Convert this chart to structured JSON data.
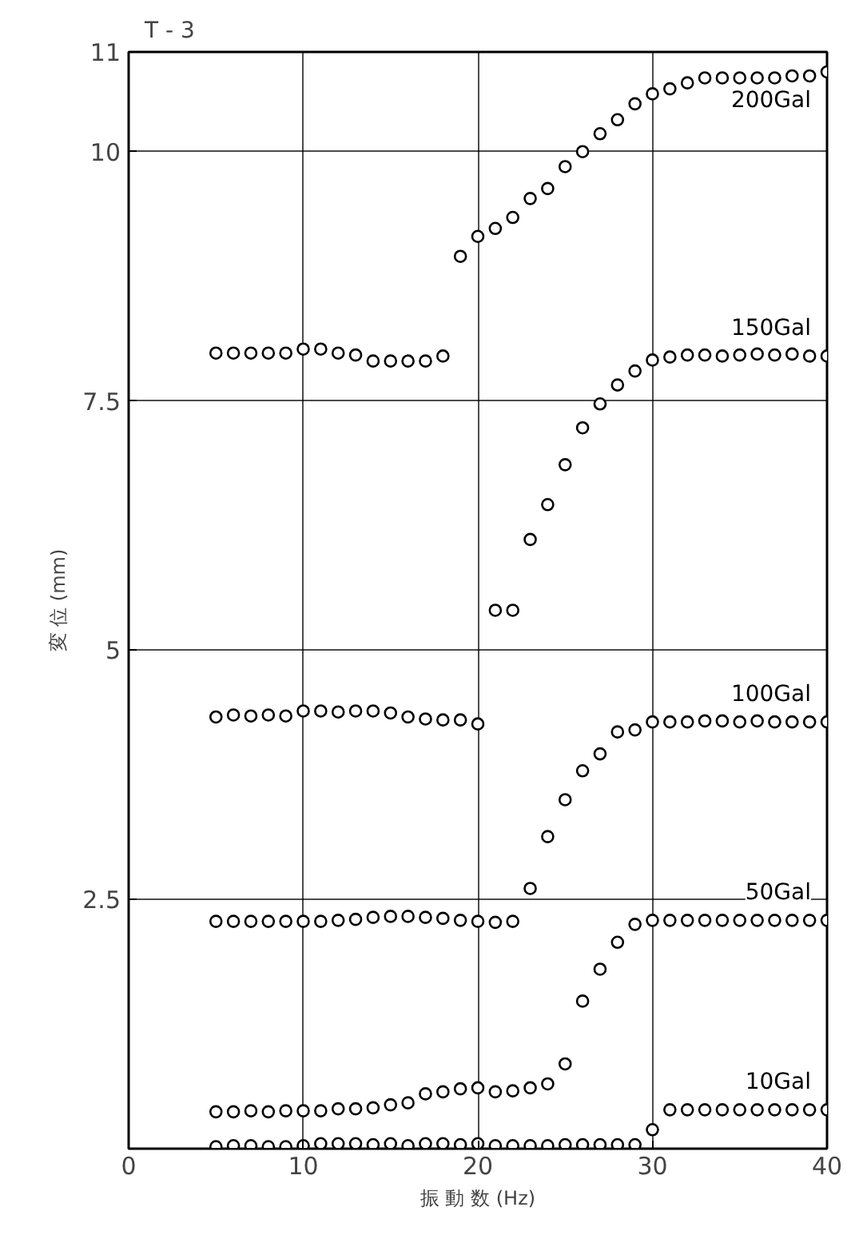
{
  "chart_data": {
    "type": "scatter",
    "title": "T - 3",
    "xlabel": "振 動 数 (Hz)",
    "ylabel": "変 位 (mm)",
    "x": [
      5,
      6,
      7,
      8,
      9,
      10,
      11,
      12,
      13,
      14,
      15,
      16,
      17,
      18,
      19,
      20,
      21,
      22,
      23,
      24,
      25,
      26,
      27,
      28,
      29,
      30,
      31,
      32,
      33,
      34,
      35,
      36,
      37,
      38,
      39,
      40
    ],
    "series": [
      {
        "name": "200Gal",
        "color": "#000000",
        "values": [
          7.98,
          7.98,
          7.98,
          7.98,
          7.98,
          8.02,
          8.02,
          7.98,
          7.96,
          7.9,
          7.9,
          7.9,
          7.9,
          7.95,
          8.95,
          9.15,
          9.23,
          9.34,
          9.53,
          9.63,
          9.85,
          10.0,
          10.18,
          10.32,
          10.48,
          10.58,
          10.63,
          10.69,
          10.74,
          10.74,
          10.74,
          10.74,
          10.74,
          10.76,
          10.76,
          10.8
        ]
      },
      {
        "name": "150Gal",
        "color": "#000000",
        "values": [
          4.33,
          4.35,
          4.34,
          4.35,
          4.34,
          4.39,
          4.39,
          4.38,
          4.39,
          4.39,
          4.37,
          4.33,
          4.31,
          4.3,
          4.3,
          4.26,
          5.4,
          5.4,
          6.11,
          6.46,
          6.86,
          7.23,
          7.47,
          7.66,
          7.8,
          7.91,
          7.94,
          7.96,
          7.96,
          7.95,
          7.96,
          7.97,
          7.96,
          7.97,
          7.95,
          7.95
        ]
      },
      {
        "name": "100Gal",
        "color": "#000000",
        "values": [
          2.28,
          2.28,
          2.28,
          2.28,
          2.28,
          2.28,
          2.28,
          2.29,
          2.3,
          2.32,
          2.33,
          2.33,
          2.32,
          2.31,
          2.29,
          2.28,
          2.27,
          2.28,
          2.61,
          3.13,
          3.5,
          3.79,
          3.96,
          4.18,
          4.2,
          4.28,
          4.28,
          4.28,
          4.29,
          4.29,
          4.28,
          4.29,
          4.28,
          4.28,
          4.28,
          4.28
        ]
      },
      {
        "name": "50Gal",
        "color": "#000000",
        "values": [
          0.37,
          0.37,
          0.38,
          0.37,
          0.38,
          0.38,
          0.38,
          0.4,
          0.4,
          0.41,
          0.44,
          0.46,
          0.55,
          0.57,
          0.6,
          0.61,
          0.57,
          0.58,
          0.61,
          0.65,
          0.85,
          1.48,
          1.8,
          2.07,
          2.25,
          2.29,
          2.29,
          2.29,
          2.29,
          2.29,
          2.29,
          2.29,
          2.29,
          2.29,
          2.29,
          2.29
        ]
      },
      {
        "name": "10Gal",
        "color": "#000000",
        "values": [
          0.02,
          0.03,
          0.03,
          0.02,
          0.02,
          0.03,
          0.05,
          0.05,
          0.05,
          0.04,
          0.05,
          0.03,
          0.05,
          0.05,
          0.04,
          0.05,
          0.03,
          0.03,
          0.03,
          0.03,
          0.04,
          0.04,
          0.04,
          0.04,
          0.04,
          0.19,
          0.39,
          0.39,
          0.39,
          0.39,
          0.39,
          0.39,
          0.39,
          0.39,
          0.39,
          0.39
        ]
      }
    ],
    "xlim": [
      0,
      40
    ],
    "ylim": [
      0,
      11
    ],
    "xticks": [
      0,
      10,
      20,
      30,
      40
    ],
    "yticks": [
      2.5,
      5,
      7.5,
      10,
      11
    ],
    "grid": true,
    "marker": "circle"
  }
}
